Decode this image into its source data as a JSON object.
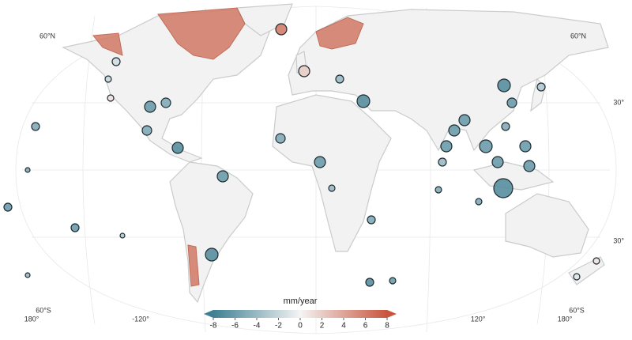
{
  "graticule_labels": [
    "60°N",
    "60°N",
    "30°",
    "30°",
    "60°S",
    "60°S",
    "180°",
    "-120°",
    "120°",
    "180°"
  ],
  "colorbar": {
    "title": "mm/year",
    "lim": [
      -8,
      8
    ],
    "ticks": [
      -8,
      -6,
      -4,
      -2,
      0,
      2,
      4,
      6,
      8
    ],
    "colors": [
      "#3f7f93",
      "#f4f4f4",
      "#c8553d"
    ]
  },
  "sites": [
    -1.5,
    -2,
    1,
    -6,
    -5,
    -5,
    -7,
    -5,
    -6,
    -7,
    -5,
    -6,
    -4,
    -5,
    -7,
    -6,
    -7,
    -4,
    2,
    6,
    -7,
    -6,
    -5,
    -6,
    -6,
    -6,
    -6,
    -6,
    -6,
    -6,
    -7,
    -4,
    -5,
    -5,
    -3,
    -6,
    -6,
    -5,
    -4,
    -3,
    -1,
    1
  ]
}
